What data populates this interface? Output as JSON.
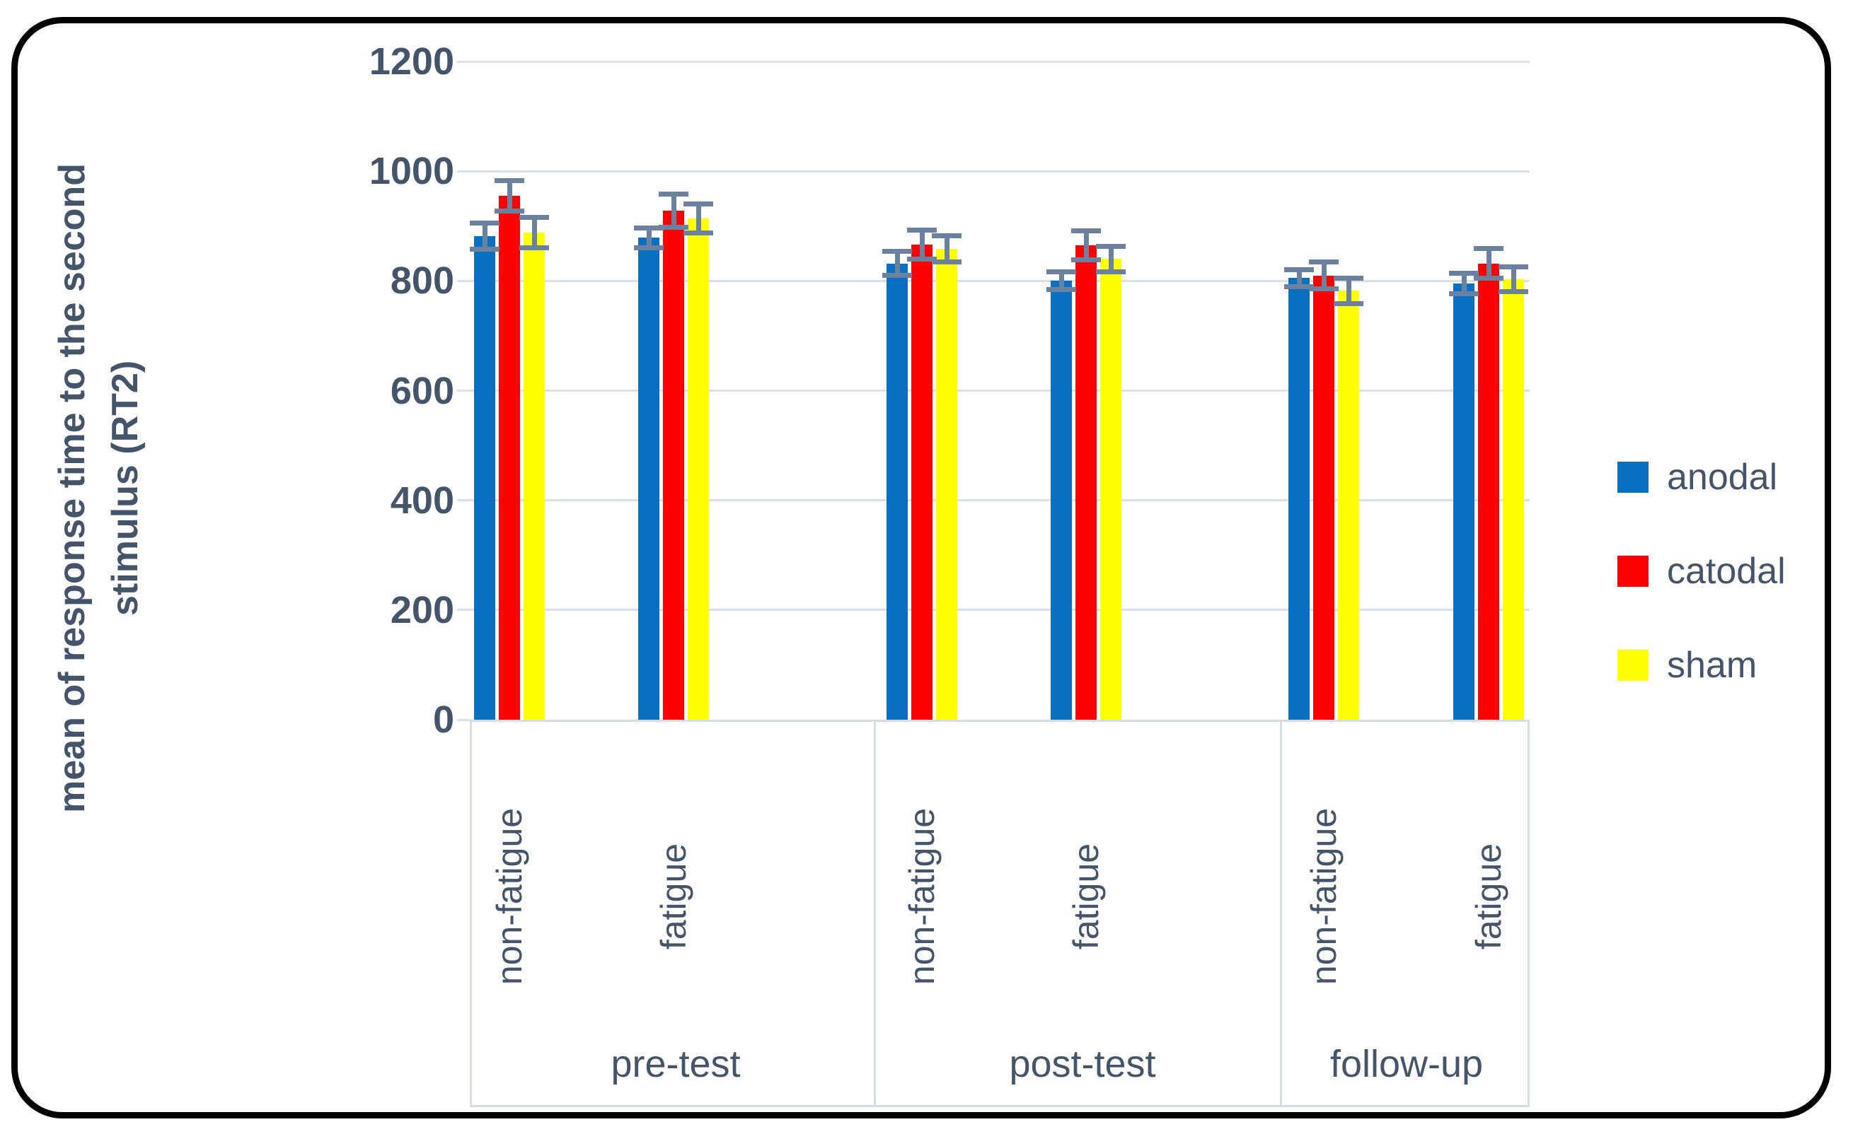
{
  "chart_data": {
    "type": "bar",
    "title": "",
    "ylabel_line1": "mean of response time to the second",
    "ylabel_line2": "stimulus (RT2)",
    "ylim": [
      0,
      1200
    ],
    "ytick_step": 200,
    "yticks": [
      0,
      200,
      400,
      600,
      800,
      1000,
      1200
    ],
    "grid": true,
    "legend_position": "right",
    "sections": [
      {
        "label": "pre-test",
        "categories": [
          "non-fatigue",
          "fatigue"
        ]
      },
      {
        "label": "post-test",
        "categories": [
          "non-fatigue",
          "fatigue"
        ]
      },
      {
        "label": "follow-up",
        "categories": [
          "non-fatigue",
          "fatigue"
        ]
      }
    ],
    "category_labels": [
      "non-fatigue",
      "fatigue",
      "non-fatigue",
      "fatigue",
      "non-fatigue",
      "fatigue"
    ],
    "series": [
      {
        "name": "anodal",
        "color": "#0A71C2",
        "values": [
          882,
          879,
          832,
          800,
          805,
          795
        ],
        "errors": [
          24,
          18,
          22,
          16,
          16,
          19
        ]
      },
      {
        "name": "catodal",
        "color": "#FF0000",
        "values": [
          955,
          928,
          866,
          865,
          810,
          832
        ],
        "errors": [
          28,
          30,
          26,
          26,
          24,
          27
        ]
      },
      {
        "name": "sham",
        "color": "#FFFF00",
        "values": [
          888,
          914,
          858,
          840,
          782,
          803
        ],
        "errors": [
          28,
          26,
          24,
          23,
          23,
          23
        ]
      }
    ],
    "colors": {
      "error_bar": "#6B81A0",
      "gridline": "#DAE0E8",
      "box_line": "#D6DCE4",
      "text": "#44546A",
      "frame_border": "#000000",
      "background": "#FFFFFF"
    }
  }
}
